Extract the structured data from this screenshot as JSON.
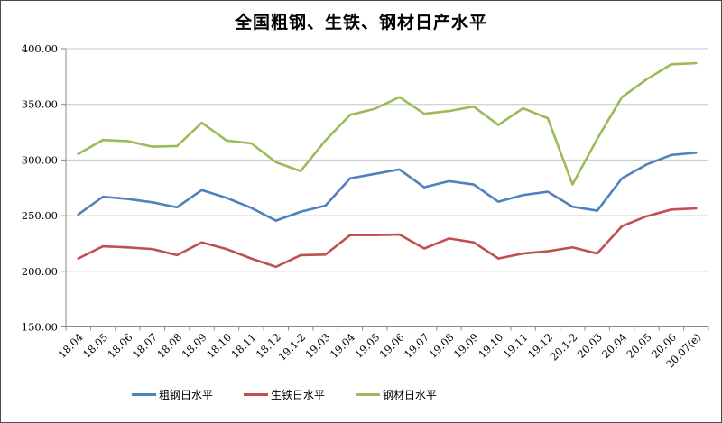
{
  "chart_data": {
    "type": "line",
    "title": "全国粗钢、生铁、钢材日产水平",
    "xlabel": "",
    "ylabel": "",
    "ylim": [
      150,
      400
    ],
    "ytick_step": 50,
    "ytick_labels": [
      "150.00",
      "200.00",
      "250.00",
      "300.00",
      "350.00",
      "400.00"
    ],
    "grid": true,
    "legend_position": "bottom",
    "categories": [
      "18.04",
      "18.05",
      "18.06",
      "18.07",
      "18.08",
      "18.09",
      "18.10",
      "18.11",
      "18.12",
      "19.1-2",
      "19.03",
      "19.04",
      "19.05",
      "19.06",
      "19.07",
      "19.08",
      "19.09",
      "19.10",
      "19.11",
      "19.12",
      "20.1-2",
      "20.03",
      "20.04",
      "20.05",
      "20.06",
      "20.07(e)"
    ],
    "series": [
      {
        "name": "粗钢日水平",
        "color": "#4F81BD",
        "values": [
          251,
          267,
          265,
          262,
          257.5,
          273,
          266,
          257,
          245.5,
          253.5,
          259,
          283.5,
          287.5,
          291.5,
          275.5,
          281,
          278,
          262.5,
          268.5,
          271.5,
          258,
          254.5,
          283.5,
          296,
          304.5,
          306.5
        ]
      },
      {
        "name": "生铁日水平",
        "color": "#C0504D",
        "values": [
          211.5,
          222.5,
          221.5,
          220,
          214.5,
          226,
          220,
          211.5,
          204,
          214.5,
          215,
          232.5,
          232.5,
          233,
          220.5,
          229.5,
          226,
          211.5,
          216,
          218,
          221.5,
          216,
          240.5,
          249.5,
          255.5,
          256.5
        ]
      },
      {
        "name": "钢材日水平",
        "color": "#9BBB59",
        "values": [
          305.5,
          318,
          317,
          312,
          312.5,
          333.5,
          317.5,
          315,
          298,
          290,
          317.5,
          340.5,
          346,
          356.5,
          341.5,
          344,
          348,
          331.5,
          346.5,
          337.5,
          278,
          319,
          356.5,
          372.5,
          386,
          387
        ]
      }
    ],
    "axis_color": "#898989",
    "gridline_color": "#C6C6C6",
    "text_color": "#000000"
  }
}
